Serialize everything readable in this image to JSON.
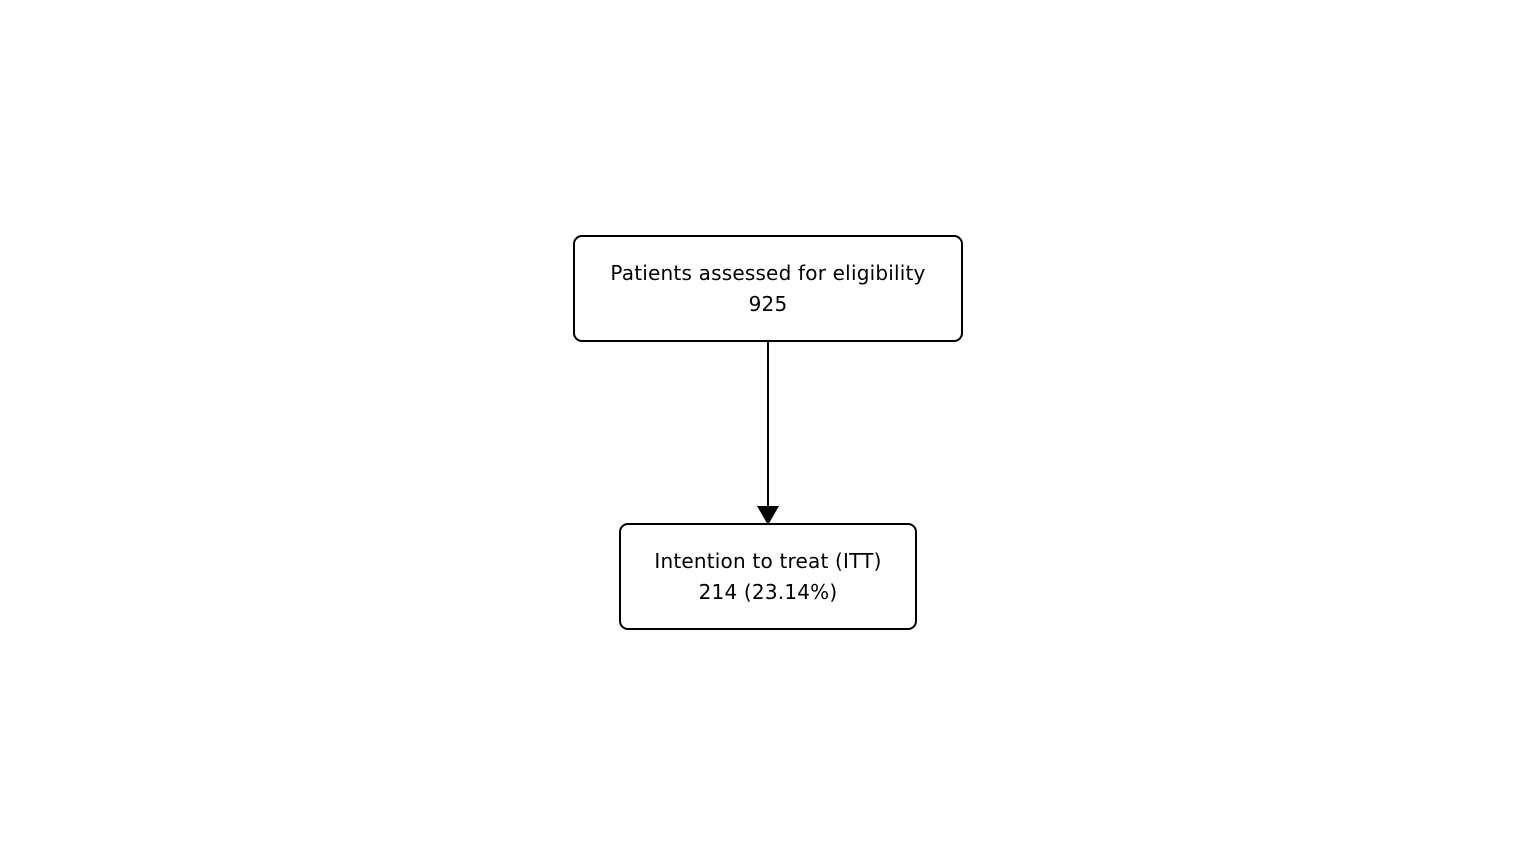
{
  "diagram": {
    "type": "flowchart",
    "nodes": [
      {
        "id": "eligibility",
        "label": "Patients assessed for eligibility",
        "value": "925"
      },
      {
        "id": "itt",
        "label": "Intention to treat (ITT)",
        "value": "214 (23.14%)"
      }
    ],
    "edges": [
      {
        "from": "eligibility",
        "to": "itt"
      }
    ]
  }
}
